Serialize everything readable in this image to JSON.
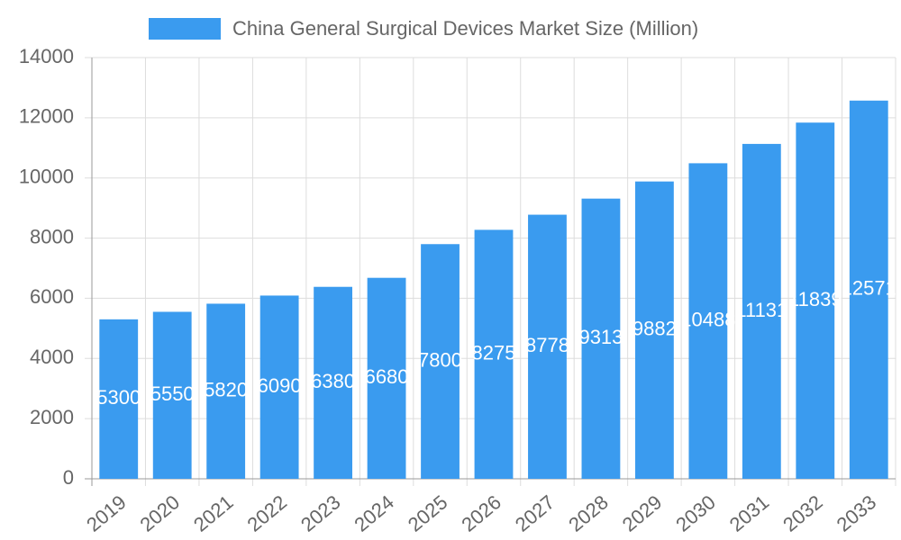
{
  "chart_data": {
    "type": "bar",
    "legend": "China General Surgical Devices Market Size (Million)",
    "color": "#3a9bef",
    "categories": [
      "2019",
      "2020",
      "2021",
      "2022",
      "2023",
      "2024",
      "2025",
      "2026",
      "2027",
      "2028",
      "2029",
      "2030",
      "2031",
      "2032",
      "2033"
    ],
    "values": [
      5300,
      5550,
      5820,
      6090,
      6380,
      6680,
      7800,
      8275,
      8778,
      9313,
      9882,
      10488,
      11131,
      11839,
      12571
    ],
    "ylim": [
      0,
      14000
    ],
    "yticks": [
      0,
      2000,
      4000,
      6000,
      8000,
      10000,
      12000,
      14000
    ],
    "grid": true
  }
}
